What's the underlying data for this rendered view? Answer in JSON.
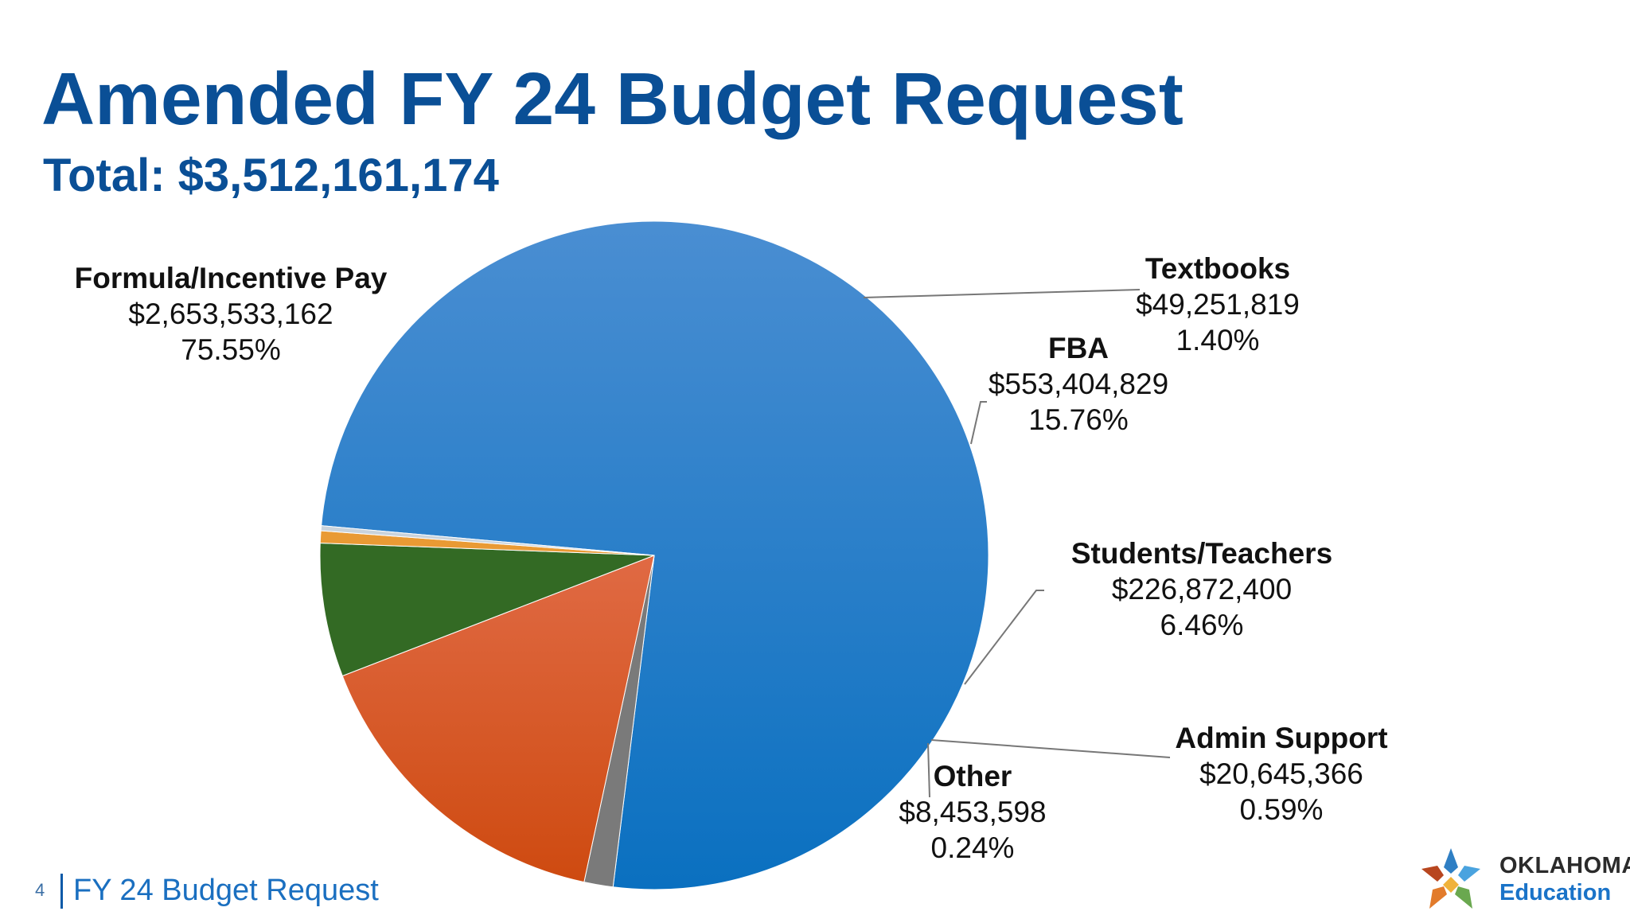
{
  "title": "Amended FY 24 Budget Request",
  "subtitle": "Total: $3,512,161,174",
  "footer": {
    "page_number": "4",
    "text": "FY 24 Budget Request"
  },
  "logo": {
    "line1": "OKLAHOMA",
    "line2": "Education"
  },
  "chart_data": {
    "type": "pie",
    "title": "Amended FY 24 Budget Request",
    "subtitle": "Total: $3,512,161,174",
    "slices": [
      {
        "label": "Formula/Incentive Pay",
        "amount": "$2,653,533,162",
        "percent_label": "75.55%",
        "value": 75.55,
        "color": "#1273c4"
      },
      {
        "label": "Textbooks",
        "amount": "$49,251,819",
        "percent_label": "1.40%",
        "value": 1.4,
        "color": "#7a7a7a"
      },
      {
        "label": "FBA",
        "amount": "$553,404,829",
        "percent_label": "15.76%",
        "value": 15.76,
        "color": "#d2501a"
      },
      {
        "label": "Students/Teachers",
        "amount": "$226,872,400",
        "percent_label": "6.46%",
        "value": 6.46,
        "color": "#336a24"
      },
      {
        "label": "Admin Support",
        "amount": "$20,645,366",
        "percent_label": "0.59%",
        "value": 0.59,
        "color": "#e99a34"
      },
      {
        "label": "Other",
        "amount": "$8,453,598",
        "percent_label": "0.24%",
        "value": 0.24,
        "color": "#c9d3dc"
      }
    ]
  }
}
